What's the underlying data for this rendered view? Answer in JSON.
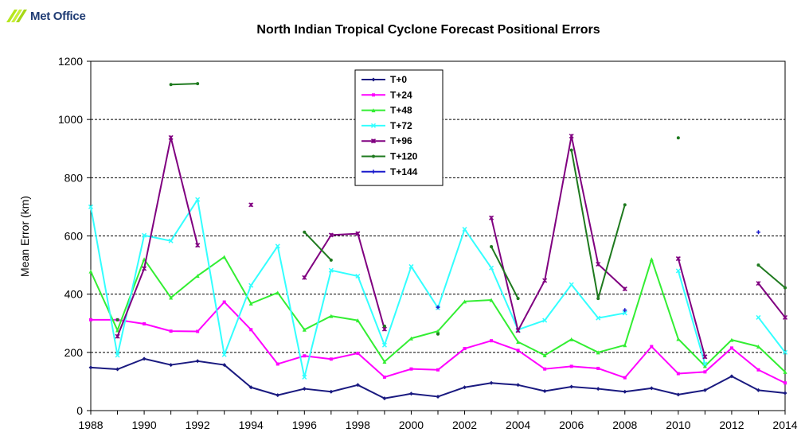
{
  "brand": {
    "name": "Met Office"
  },
  "chart_data": {
    "type": "line",
    "title": "North Indian Tropical Cyclone Forecast Positional Errors",
    "xlabel": "",
    "ylabel": "Mean Error (km)",
    "xlim": [
      1988,
      2014
    ],
    "ylim": [
      0,
      1200
    ],
    "x_ticks": [
      1988,
      1990,
      1992,
      1994,
      1996,
      1998,
      2000,
      2002,
      2004,
      2006,
      2008,
      2010,
      2012,
      2014
    ],
    "y_ticks": [
      0,
      200,
      400,
      600,
      800,
      1000,
      1200
    ],
    "grid": "horizontal dashed",
    "legend": "top-center",
    "x": [
      1988,
      1989,
      1990,
      1991,
      1992,
      1993,
      1994,
      1995,
      1996,
      1997,
      1998,
      1999,
      2000,
      2001,
      2002,
      2003,
      2004,
      2005,
      2006,
      2007,
      2008,
      2009,
      2010,
      2011,
      2012,
      2013,
      2014
    ],
    "series": [
      {
        "name": "T+0",
        "color": "#1a1a80",
        "marker": "diamond",
        "values": [
          148,
          142,
          178,
          157,
          170,
          157,
          80,
          53,
          75,
          65,
          88,
          42,
          58,
          48,
          80,
          95,
          88,
          67,
          82,
          75,
          65,
          77,
          55,
          70,
          118,
          70,
          60
        ]
      },
      {
        "name": "T+24",
        "color": "#ff00ff",
        "marker": "square",
        "values": [
          312,
          312,
          298,
          273,
          272,
          373,
          278,
          160,
          188,
          177,
          197,
          115,
          143,
          140,
          213,
          240,
          207,
          143,
          152,
          145,
          113,
          220,
          127,
          133,
          215,
          140,
          95
        ]
      },
      {
        "name": "T+48",
        "color": "#33ee33",
        "marker": "triangle",
        "values": [
          478,
          276,
          520,
          388,
          463,
          528,
          368,
          405,
          278,
          325,
          310,
          168,
          248,
          273,
          375,
          380,
          236,
          190,
          245,
          200,
          225,
          520,
          246,
          153,
          243,
          220,
          133
        ]
      },
      {
        "name": "T+72",
        "color": "#33ffff",
        "marker": "x",
        "values": [
          700,
          190,
          602,
          583,
          725,
          192,
          430,
          565,
          115,
          482,
          462,
          225,
          495,
          353,
          623,
          490,
          278,
          310,
          433,
          318,
          335,
          null,
          480,
          160,
          null,
          320,
          200
        ]
      },
      {
        "name": "T+96",
        "color": "#800080",
        "marker": "star",
        "values": [
          null,
          255,
          488,
          938,
          568,
          null,
          707,
          null,
          457,
          603,
          608,
          280,
          null,
          null,
          null,
          662,
          275,
          447,
          943,
          503,
          418,
          null,
          522,
          185,
          null,
          437,
          320
        ]
      },
      {
        "name": "T+120",
        "color": "#1f7a1f",
        "marker": "circle",
        "values": [
          null,
          312,
          null,
          1120,
          1123,
          null,
          null,
          null,
          613,
          517,
          null,
          290,
          null,
          263,
          null,
          563,
          385,
          null,
          895,
          385,
          707,
          null,
          937,
          null,
          null,
          500,
          422
        ]
      },
      {
        "name": "T+144",
        "color": "#1a1acc",
        "marker": "plus",
        "values": [
          null,
          null,
          null,
          null,
          null,
          null,
          null,
          null,
          null,
          null,
          null,
          null,
          null,
          355,
          null,
          null,
          null,
          null,
          null,
          null,
          345,
          null,
          null,
          null,
          null,
          613,
          null
        ]
      }
    ]
  }
}
